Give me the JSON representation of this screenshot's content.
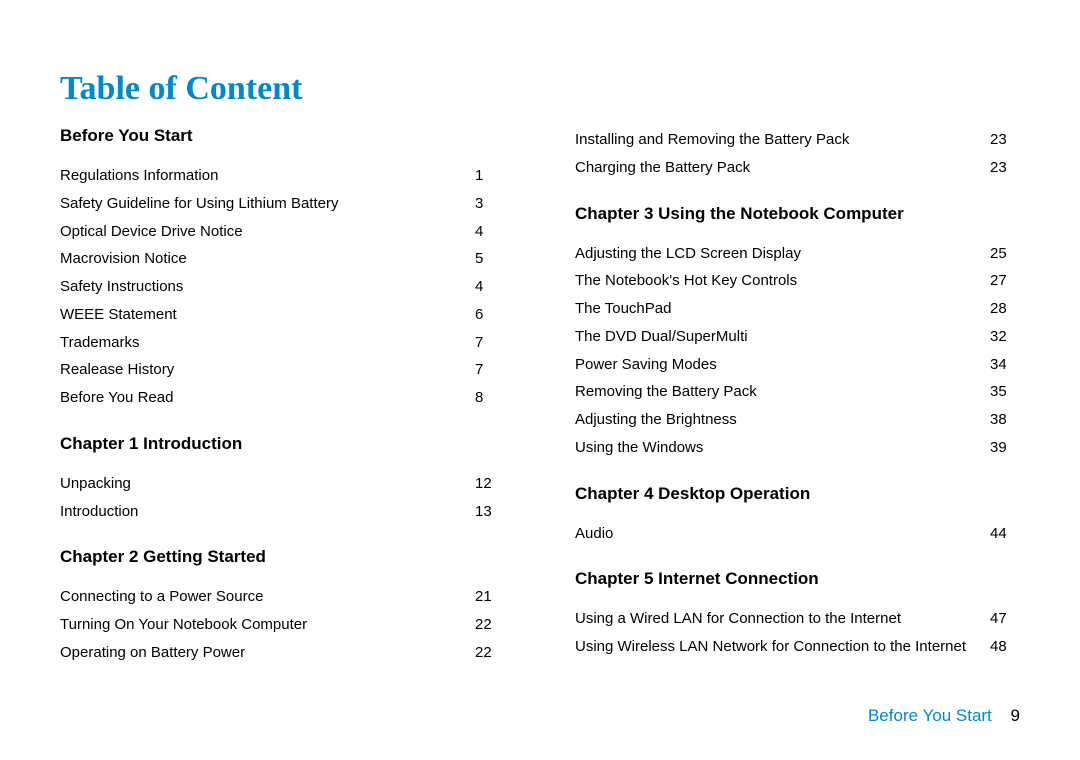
{
  "title": "Table of Content",
  "footer": {
    "section": "Before You Start",
    "page": "9"
  },
  "columns": [
    [
      {
        "heading": "Before You Start",
        "entries": [
          {
            "t": "Regulations Information",
            "p": "1"
          },
          {
            "t": "Safety Guideline for Using Lithium Battery",
            "p": "3"
          },
          {
            "t": "Optical Device Drive Notice",
            "p": "4"
          },
          {
            "t": "Macrovision Notice",
            "p": "5"
          },
          {
            "t": "Safety Instructions",
            "p": "4"
          },
          {
            "t": "WEEE Statement",
            "p": "6"
          },
          {
            "t": "Trademarks",
            "p": "7"
          },
          {
            "t": "Realease History",
            "p": "7"
          },
          {
            "t": "Before You Read",
            "p": "8"
          }
        ]
      },
      {
        "heading": "Chapter 1  Introduction",
        "entries": [
          {
            "t": "Unpacking",
            "p": "12"
          },
          {
            "t": "Introduction",
            "p": "13"
          }
        ]
      },
      {
        "heading": "Chapter 2  Getting Started",
        "entries": [
          {
            "t": "Connecting to a Power Source",
            "p": "21"
          },
          {
            "t": "Turning On Your Notebook Computer",
            "p": "22"
          },
          {
            "t": "Operating on Battery Power",
            "p": "22"
          }
        ]
      }
    ],
    [
      {
        "heading": null,
        "entries": [
          {
            "t": "Installing and Removing the Battery Pack",
            "p": "23"
          },
          {
            "t": "Charging the Battery Pack",
            "p": "23"
          }
        ]
      },
      {
        "heading": "Chapter 3  Using the Notebook Computer",
        "entries": [
          {
            "t": "Adjusting the LCD Screen Display",
            "p": "25"
          },
          {
            "t": "The Notebook's Hot Key Controls",
            "p": "27"
          },
          {
            "t": "The TouchPad",
            "p": "28"
          },
          {
            "t": "The DVD Dual/SuperMulti",
            "p": "32"
          },
          {
            "t": "Power Saving Modes",
            "p": "34"
          },
          {
            "t": "Removing the Battery Pack",
            "p": "35"
          },
          {
            "t": "Adjusting the Brightness",
            "p": "38"
          },
          {
            "t": "Using the Windows",
            "p": "39"
          }
        ]
      },
      {
        "heading": "Chapter 4  Desktop Operation",
        "entries": [
          {
            "t": "Audio",
            "p": "44"
          }
        ]
      },
      {
        "heading": "Chapter 5  Internet Connection",
        "entries": [
          {
            "t": "Using a Wired LAN for Connection to the Internet",
            "p": "47"
          },
          {
            "t": "Using Wireless LAN Network for Connection to the Internet",
            "p": "48"
          }
        ]
      }
    ]
  ]
}
